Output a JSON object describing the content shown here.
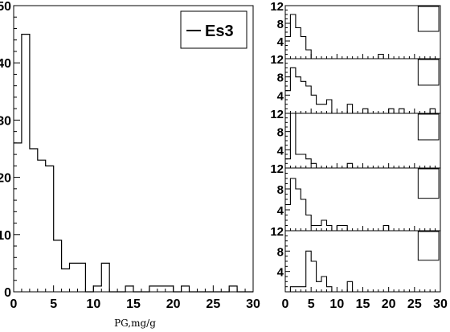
{
  "chart_data": [
    {
      "type": "histogram",
      "xlabel": "PG,mg/g",
      "xlim": [
        0,
        30
      ],
      "ylim": [
        0,
        50
      ],
      "xticks": [
        "0",
        "5",
        "10",
        "15",
        "20",
        "25",
        "30"
      ],
      "yticks": [
        "0",
        "10",
        "20",
        "30",
        "40",
        "50"
      ],
      "legend": {
        "label": "Es3",
        "position": "top-right"
      },
      "bin_edges": [
        0,
        1,
        2,
        3,
        4,
        5,
        6,
        7,
        8,
        9,
        10,
        11,
        12,
        13,
        14,
        15,
        16,
        17,
        18,
        19,
        20,
        21,
        22,
        23,
        24,
        25,
        26,
        27,
        28,
        29,
        30
      ],
      "values": [
        26,
        45,
        25,
        23,
        22,
        9,
        4,
        5,
        5,
        0,
        1,
        5,
        0,
        0,
        1,
        0,
        0,
        1,
        1,
        1,
        0,
        1,
        0,
        0,
        0,
        0,
        0,
        1,
        0,
        0
      ]
    },
    {
      "type": "histogram",
      "panel": 1,
      "xlim": [
        0,
        30
      ],
      "ylim": [
        0,
        12
      ],
      "yticks": [
        "4",
        "8",
        "12"
      ],
      "legend": {
        "position": "top-right"
      },
      "bin_edges": [
        0,
        1,
        2,
        3,
        4,
        5,
        6,
        7,
        8,
        9,
        10,
        11,
        12,
        13,
        14,
        15,
        16,
        17,
        18,
        19,
        20,
        21,
        22,
        23,
        24,
        25,
        26,
        27,
        28,
        29,
        30
      ],
      "values": [
        5,
        10,
        7,
        5,
        2,
        0,
        0,
        0,
        0,
        0,
        0,
        0,
        0,
        0,
        0,
        0,
        0,
        0,
        1,
        0,
        0,
        0,
        0,
        0,
        0,
        0,
        0,
        0,
        0,
        0
      ]
    },
    {
      "type": "histogram",
      "panel": 2,
      "xlim": [
        0,
        30
      ],
      "ylim": [
        0,
        12
      ],
      "yticks": [
        "4",
        "8",
        "12"
      ],
      "legend": {
        "position": "top-right"
      },
      "bin_edges": [
        0,
        1,
        2,
        3,
        4,
        5,
        6,
        7,
        8,
        9,
        10,
        11,
        12,
        13,
        14,
        15,
        16,
        17,
        18,
        19,
        20,
        21,
        22,
        23,
        24,
        25,
        26,
        27,
        28,
        29,
        30
      ],
      "values": [
        5,
        10,
        8,
        7,
        6,
        4,
        2,
        2,
        3,
        0,
        0,
        0,
        2,
        0,
        0,
        1,
        0,
        0,
        0,
        0,
        1,
        0,
        1,
        0,
        0,
        0,
        0,
        0,
        1,
        0
      ]
    },
    {
      "type": "histogram",
      "panel": 3,
      "xlim": [
        0,
        30
      ],
      "ylim": [
        0,
        12
      ],
      "yticks": [
        "4",
        "8",
        "12"
      ],
      "legend": {
        "position": "top-right"
      },
      "bin_edges": [
        0,
        1,
        2,
        3,
        4,
        5,
        6,
        7,
        8,
        9,
        10,
        11,
        12,
        13,
        14,
        15,
        16,
        17,
        18,
        19,
        20,
        21,
        22,
        23,
        24,
        25,
        26,
        27,
        28,
        29,
        30
      ],
      "values": [
        2,
        12,
        3,
        3,
        2,
        1,
        0,
        0,
        0,
        0,
        0,
        0,
        1,
        0,
        0,
        0,
        0,
        0,
        0,
        0,
        0,
        0,
        0,
        0,
        0,
        0,
        0,
        0,
        0,
        0
      ]
    },
    {
      "type": "histogram",
      "panel": 4,
      "xlim": [
        0,
        30
      ],
      "ylim": [
        0,
        12
      ],
      "yticks": [
        "4",
        "8",
        "12"
      ],
      "legend": {
        "position": "top-right"
      },
      "bin_edges": [
        0,
        1,
        2,
        3,
        4,
        5,
        6,
        7,
        8,
        9,
        10,
        11,
        12,
        13,
        14,
        15,
        16,
        17,
        18,
        19,
        20,
        21,
        22,
        23,
        24,
        25,
        26,
        27,
        28,
        29,
        30
      ],
      "values": [
        5,
        10,
        8,
        6,
        3,
        1,
        1,
        2,
        1,
        0,
        1,
        1,
        0,
        0,
        0,
        0,
        0,
        0,
        0,
        1,
        0,
        0,
        0,
        0,
        0,
        0,
        0,
        0,
        0,
        0
      ]
    },
    {
      "type": "histogram",
      "panel": 5,
      "xlim": [
        0,
        30
      ],
      "ylim": [
        0,
        12
      ],
      "xticks": [
        "0",
        "5",
        "10",
        "15",
        "20",
        "25",
        "30"
      ],
      "yticks": [
        "4",
        "8",
        "12"
      ],
      "legend": {
        "position": "top-right"
      },
      "bin_edges": [
        0,
        1,
        2,
        3,
        4,
        5,
        6,
        7,
        8,
        9,
        10,
        11,
        12,
        13,
        14,
        15,
        16,
        17,
        18,
        19,
        20,
        21,
        22,
        23,
        24,
        25,
        26,
        27,
        28,
        29,
        30
      ],
      "values": [
        0,
        1,
        1,
        1,
        8,
        6,
        2,
        3,
        1,
        0,
        0,
        0,
        2,
        0,
        0,
        0,
        0,
        0,
        0,
        0,
        0,
        0,
        0,
        0,
        0,
        0,
        0,
        0,
        0,
        0
      ]
    }
  ]
}
